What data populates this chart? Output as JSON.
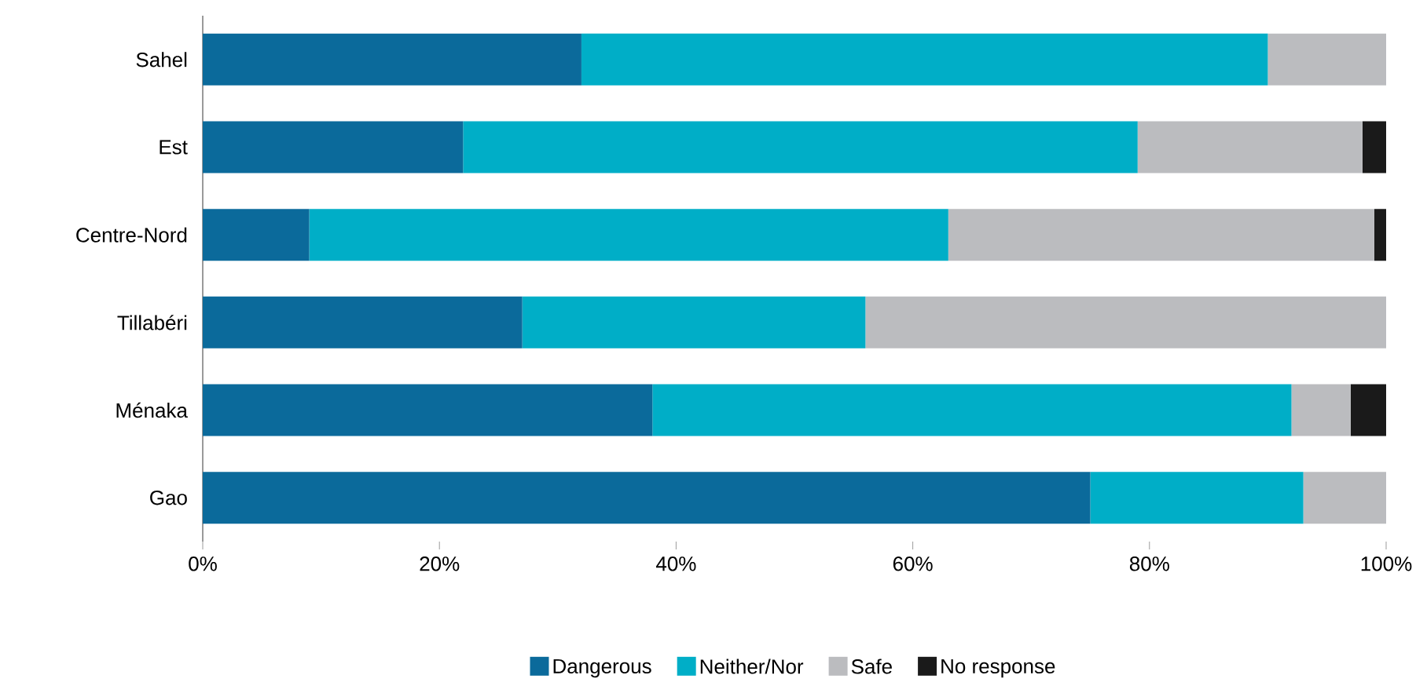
{
  "chart_data": {
    "type": "bar",
    "orientation": "horizontal",
    "stacked": true,
    "categories": [
      "Sahel",
      "Est",
      "Centre-Nord",
      "Tillabéri",
      "Ménaka",
      "Gao"
    ],
    "series": [
      {
        "name": "Dangerous",
        "color": "#0b6a9b",
        "values": [
          32,
          22,
          9,
          27,
          38,
          75
        ]
      },
      {
        "name": "Neither/Nor",
        "color": "#00aec7",
        "values": [
          58,
          57,
          54,
          29,
          54,
          18
        ]
      },
      {
        "name": "Safe",
        "color": "#bbbcbf",
        "values": [
          10,
          19,
          36,
          44,
          5,
          7
        ]
      },
      {
        "name": "No response",
        "color": "#1a1a1a",
        "values": [
          0,
          2,
          1,
          0,
          3,
          0
        ]
      }
    ],
    "xlim": [
      0,
      100
    ],
    "xticks": [
      {
        "value": 0,
        "label": "0%"
      },
      {
        "value": 20,
        "label": "20%"
      },
      {
        "value": 40,
        "label": "40%"
      },
      {
        "value": 60,
        "label": "60%"
      },
      {
        "value": 80,
        "label": "80%"
      },
      {
        "value": 100,
        "label": "100%"
      }
    ],
    "legend": "bottom"
  }
}
